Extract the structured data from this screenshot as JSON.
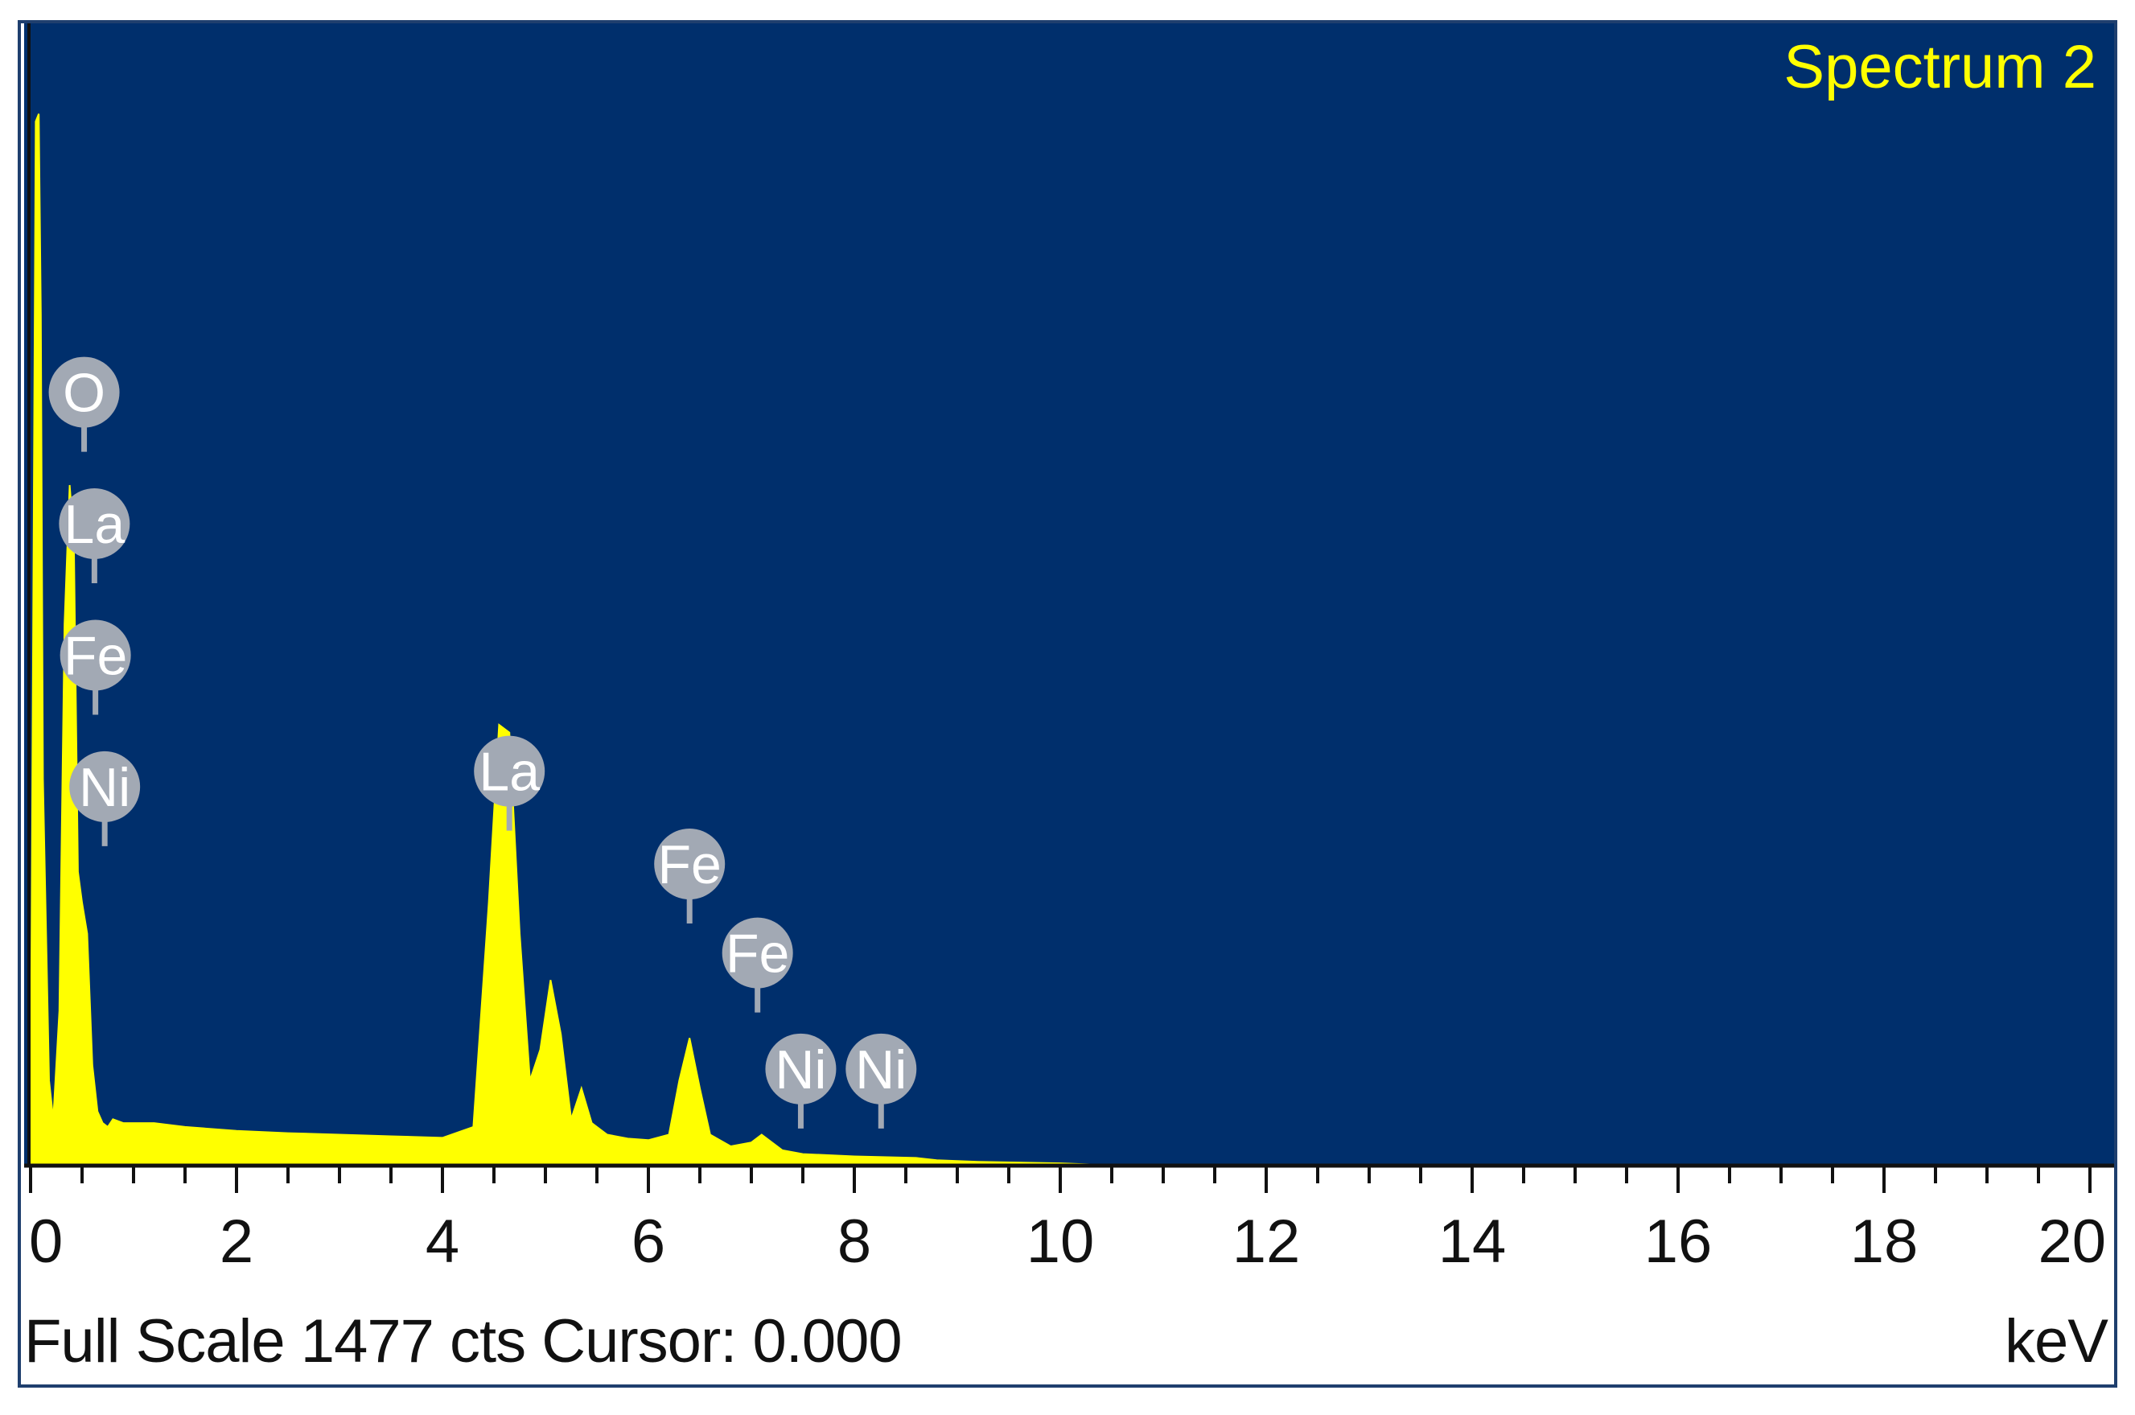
{
  "colors": {
    "plot_background": "#002f6c",
    "spectrum": "#ffff00",
    "title": "#ffff00",
    "peak_label_fill": "#a2a9b4",
    "peak_label_text": "#ffffff",
    "tick_label": "#111111"
  },
  "status": {
    "full_scale_text": "Full Scale 1477 cts Cursor: 0.000",
    "unit": "keV"
  },
  "chart_data": {
    "type": "area",
    "title": "Spectrum 2",
    "xlabel": "keV",
    "ylabel": "",
    "xlim": [
      0,
      20
    ],
    "ylim": [
      0,
      1477
    ],
    "x_ticks": [
      "0",
      "2",
      "4",
      "6",
      "8",
      "10",
      "12",
      "14",
      "16",
      "18",
      "20"
    ],
    "x_minor_step": 0.5,
    "grid": false,
    "series": [
      {
        "x": [
          0.0,
          0.05,
          0.08,
          0.1,
          0.12,
          0.18,
          0.22,
          0.28,
          0.33,
          0.38,
          0.42,
          0.46,
          0.5,
          0.55,
          0.6,
          0.65,
          0.7,
          0.75,
          0.8,
          0.9,
          1.0,
          1.2,
          1.5,
          2.0,
          2.5,
          3.0,
          3.5,
          4.0,
          4.3,
          4.45,
          4.55,
          4.65,
          4.75,
          4.85,
          4.95,
          5.05,
          5.15,
          5.25,
          5.35,
          5.45,
          5.6,
          5.8,
          6.0,
          6.2,
          6.3,
          6.4,
          6.5,
          6.6,
          6.8,
          7.0,
          7.1,
          7.3,
          7.5,
          8.0,
          8.6,
          8.8,
          9.2,
          10.0,
          10.6
        ],
        "y": [
          40,
          1350,
          1360,
          1100,
          500,
          110,
          60,
          200,
          700,
          880,
          810,
          380,
          340,
          300,
          130,
          70,
          55,
          50,
          60,
          55,
          55,
          55,
          50,
          45,
          42,
          40,
          38,
          36,
          50,
          340,
          570,
          560,
          300,
          110,
          150,
          240,
          170,
          60,
          100,
          55,
          40,
          35,
          33,
          40,
          110,
          165,
          100,
          40,
          25,
          30,
          40,
          20,
          15,
          12,
          10,
          7,
          5,
          3,
          0
        ]
      }
    ],
    "peak_labels": [
      {
        "element": "O",
        "x": 0.52,
        "y": 1000
      },
      {
        "element": "La",
        "x": 0.62,
        "y": 830
      },
      {
        "element": "Fe",
        "x": 0.63,
        "y": 660
      },
      {
        "element": "Ni",
        "x": 0.72,
        "y": 490
      },
      {
        "element": "La",
        "x": 4.65,
        "y": 510
      },
      {
        "element": "Fe",
        "x": 6.4,
        "y": 390
      },
      {
        "element": "Fe",
        "x": 7.06,
        "y": 275
      },
      {
        "element": "Ni",
        "x": 7.48,
        "y": 125
      },
      {
        "element": "Ni",
        "x": 8.26,
        "y": 125
      }
    ]
  }
}
